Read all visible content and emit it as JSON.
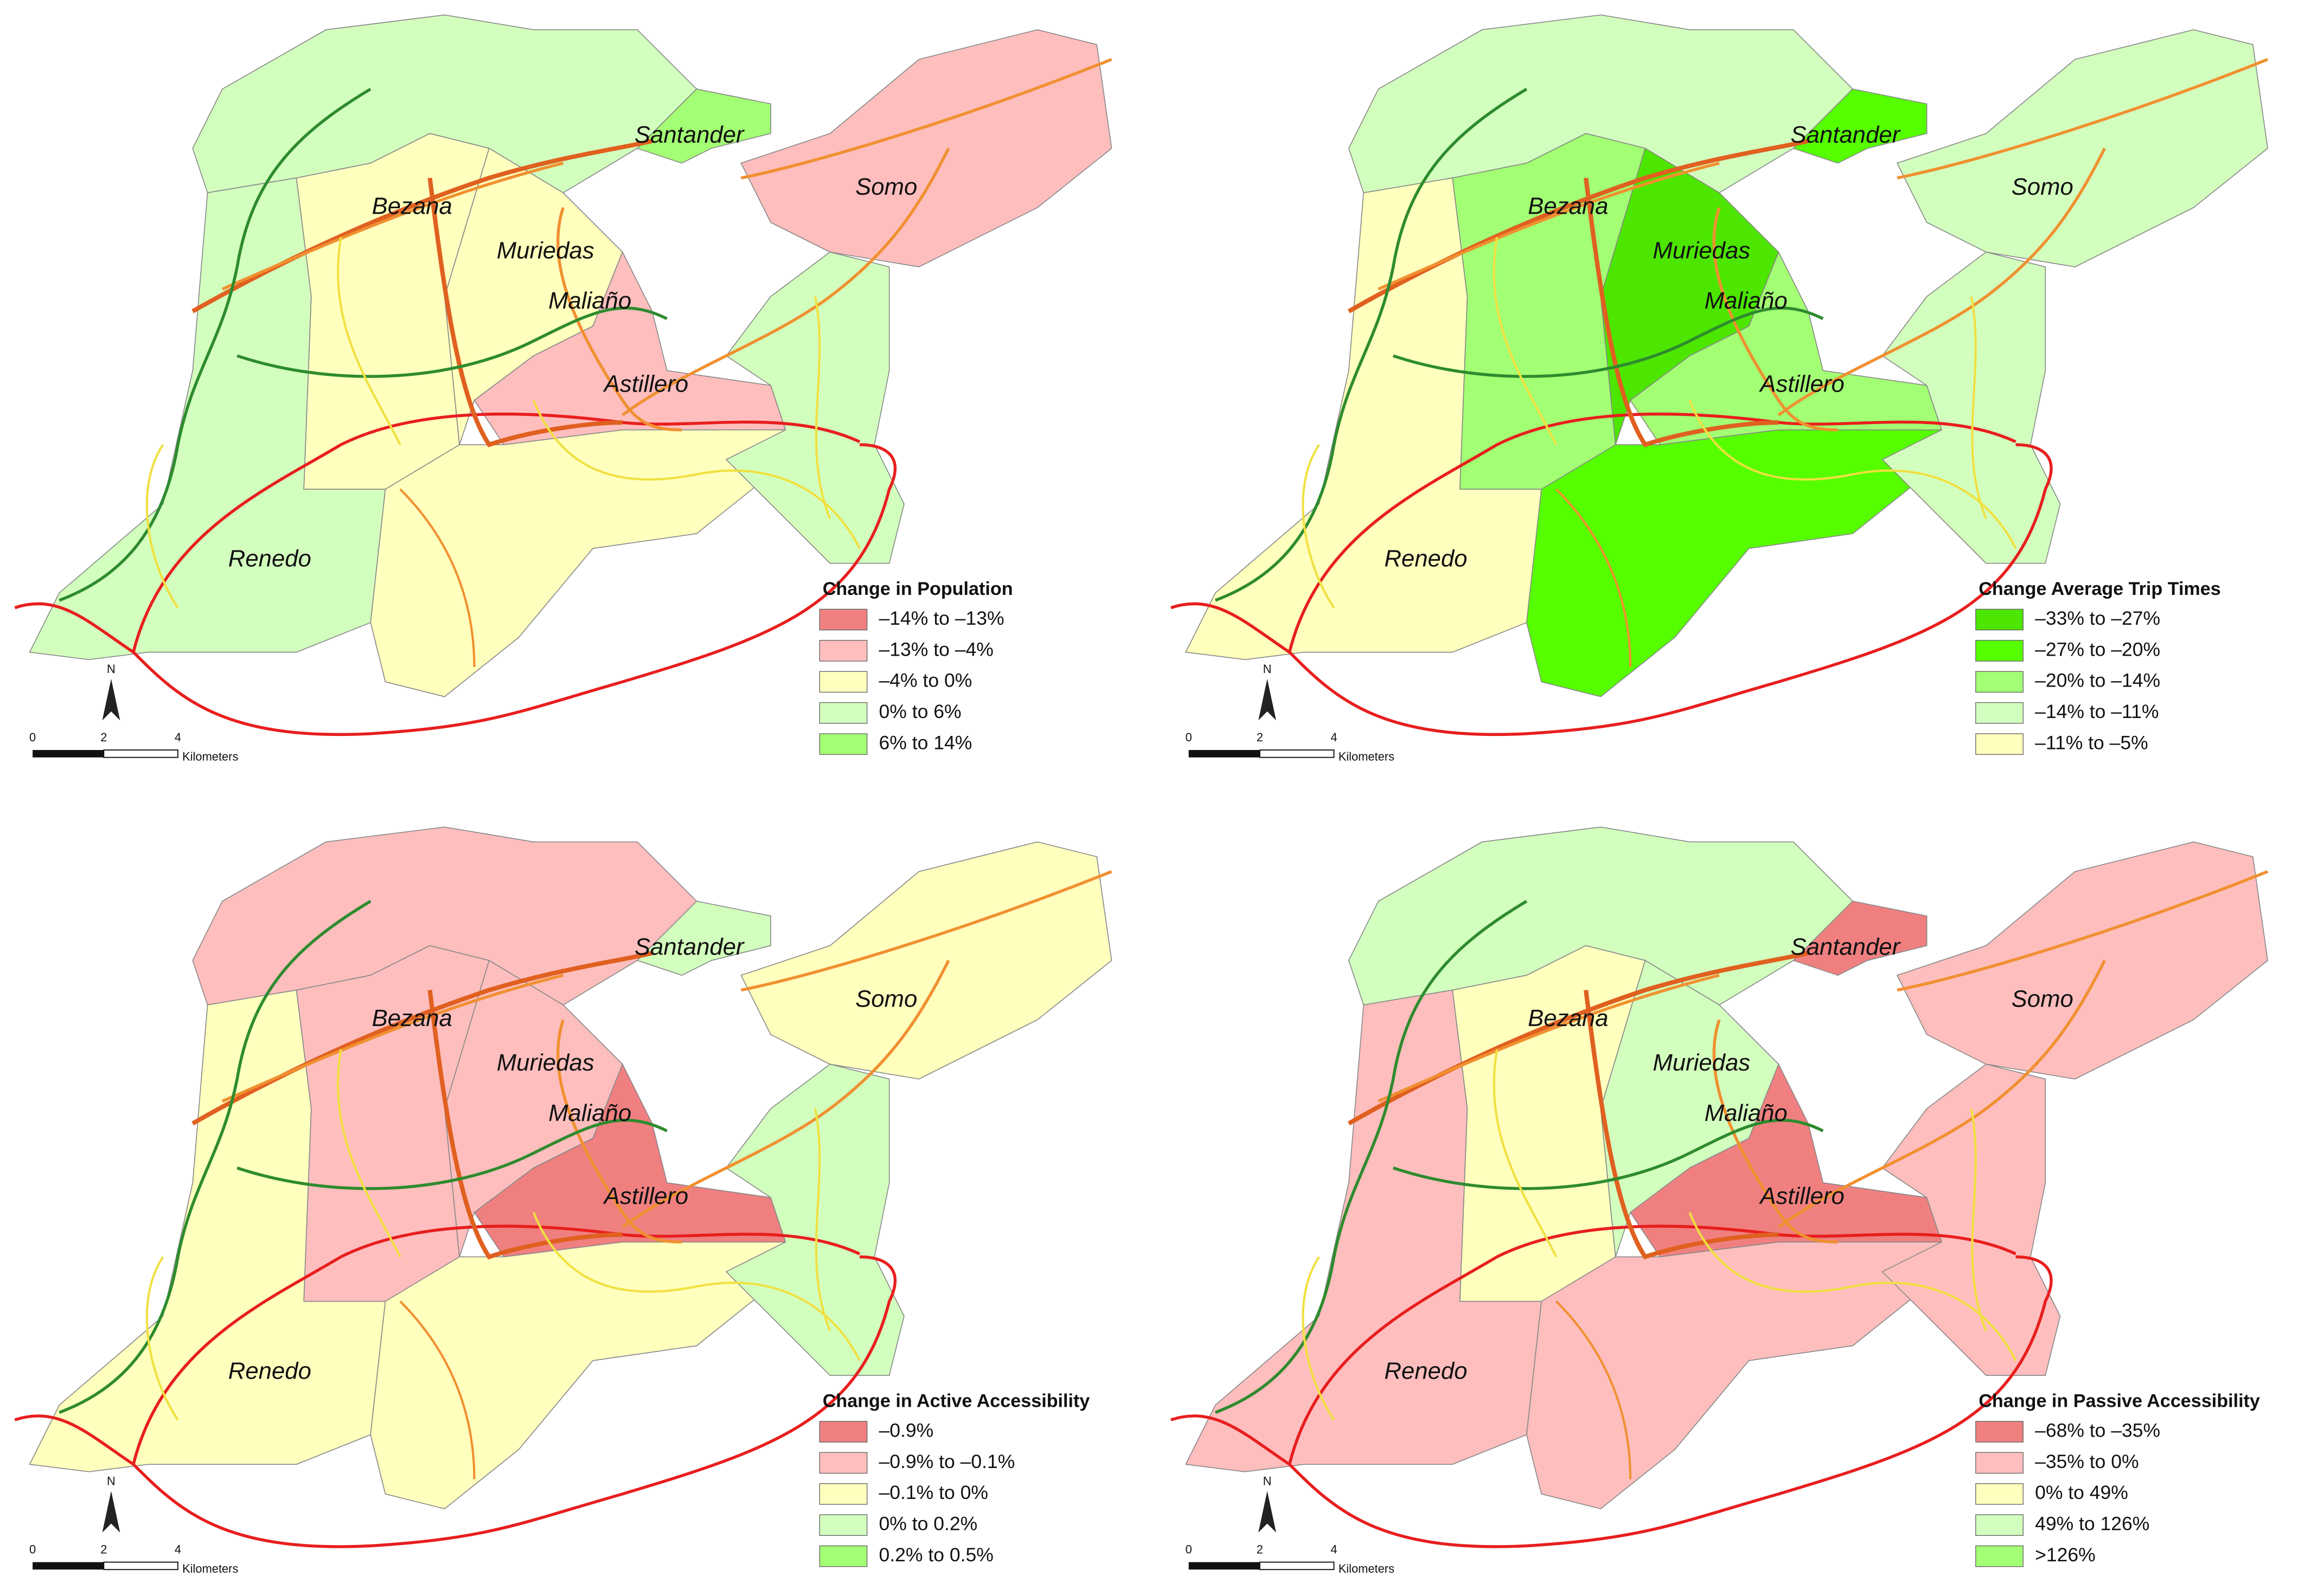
{
  "panels": [
    {
      "places": [
        "Santander",
        "Somo",
        "Bezana",
        "Muriedas",
        "Maliaño",
        "Astillero",
        "Renedo"
      ],
      "legend": {
        "title": "Change in Population",
        "items": [
          {
            "label": "–14% to –13%",
            "color": "#f08080"
          },
          {
            "label": "–13% to –4%",
            "color": "#ffbebe"
          },
          {
            "label": "–4% to 0%",
            "color": "#ffffbe"
          },
          {
            "label": "0% to 6%",
            "color": "#d3ffbe"
          },
          {
            "label": "6% to 14%",
            "color": "#a3ff73"
          }
        ]
      },
      "north": "N",
      "scale": {
        "ticks": [
          "0",
          "2",
          "4"
        ],
        "unit": "Kilometers"
      }
    },
    {
      "places": [
        "Santander",
        "Somo",
        "Bezana",
        "Muriedas",
        "Maliaño",
        "Astillero",
        "Renedo"
      ],
      "legend": {
        "title": "Change Average Trip Times",
        "items": [
          {
            "label": "–33% to –27%",
            "color": "#4ce600"
          },
          {
            "label": "–27% to –20%",
            "color": "#55ff00"
          },
          {
            "label": "–20% to –14%",
            "color": "#a3ff73"
          },
          {
            "label": "–14% to –11%",
            "color": "#d3ffbe"
          },
          {
            "label": "–11% to –5%",
            "color": "#ffffbe"
          }
        ]
      },
      "north": "N",
      "scale": {
        "ticks": [
          "0",
          "2",
          "4"
        ],
        "unit": "Kilometers"
      }
    },
    {
      "places": [
        "Santander",
        "Somo",
        "Bezana",
        "Muriedas",
        "Maliaño",
        "Astillero",
        "Renedo"
      ],
      "legend": {
        "title": "Change in Active Accessibility",
        "items": [
          {
            "label": "–0.9%",
            "color": "#f08080"
          },
          {
            "label": "–0.9% to –0.1%",
            "color": "#ffbebe"
          },
          {
            "label": "–0.1% to 0%",
            "color": "#ffffbe"
          },
          {
            "label": "0% to 0.2%",
            "color": "#d3ffbe"
          },
          {
            "label": "0.2% to 0.5%",
            "color": "#a3ff73"
          }
        ]
      },
      "north": "N",
      "scale": {
        "ticks": [
          "0",
          "2",
          "4"
        ],
        "unit": "Kilometers"
      }
    },
    {
      "places": [
        "Santander",
        "Somo",
        "Bezana",
        "Muriedas",
        "Maliaño",
        "Astillero",
        "Renedo"
      ],
      "legend": {
        "title": "Change in Passive Accessibility",
        "items": [
          {
            "label": "–68% to –35%",
            "color": "#f08080"
          },
          {
            "label": "–35% to 0%",
            "color": "#ffbebe"
          },
          {
            "label": "0% to 49%",
            "color": "#ffffbe"
          },
          {
            "label": "49% to 126%",
            "color": "#d3ffbe"
          },
          {
            "label": ">126%",
            "color": "#a3ff73"
          }
        ]
      },
      "north": "N",
      "scale": {
        "ticks": [
          "0",
          "2",
          "4"
        ],
        "unit": "Kilometers"
      }
    }
  ]
}
